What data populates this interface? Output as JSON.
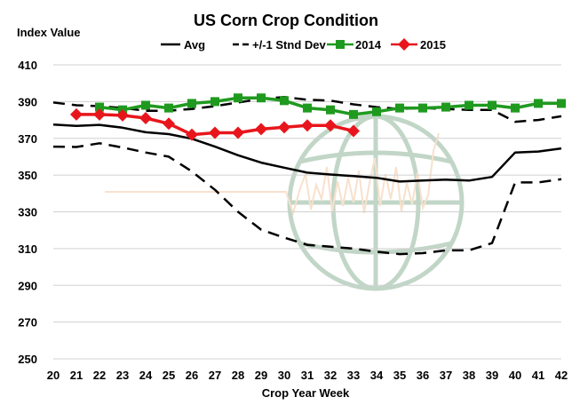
{
  "chart_data": {
    "type": "line",
    "title": "US Corn Crop Condition",
    "ylabel": "Index Value",
    "xlabel": "Crop Year Week",
    "x": [
      20,
      21,
      22,
      23,
      24,
      25,
      26,
      27,
      28,
      29,
      30,
      31,
      32,
      33,
      34,
      35,
      36,
      37,
      38,
      39,
      40,
      41,
      42
    ],
    "xlim": [
      20,
      42
    ],
    "ylim": [
      250,
      410
    ],
    "yticks": [
      250,
      270,
      290,
      310,
      330,
      350,
      370,
      390,
      410
    ],
    "grid": true,
    "legend_position": "top",
    "series": [
      {
        "name": "Avg",
        "style": "solid",
        "color": "#000000",
        "x": [
          20,
          21,
          22,
          23,
          24,
          25,
          26,
          27,
          28,
          29,
          30,
          31,
          32,
          33,
          34,
          35,
          36,
          37,
          38,
          39,
          40,
          41,
          42
        ],
        "values": [
          377.5,
          376.8,
          377.3,
          375.8,
          373.3,
          372.3,
          369.8,
          365.5,
          360.8,
          356.8,
          354.0,
          351.3,
          350.3,
          349.5,
          348.5,
          346.5,
          347.0,
          347.5,
          347.0,
          349.0,
          362.3,
          362.8,
          364.5
        ]
      },
      {
        "name": "+/-1 Stnd Dev",
        "style": "dashed",
        "color": "#000000",
        "x": [
          20,
          21,
          22,
          23,
          24,
          25,
          26,
          27,
          28,
          29,
          30,
          31,
          32,
          33,
          34,
          35,
          36,
          37,
          38,
          39,
          40,
          41,
          42
        ],
        "values": [
          389.5,
          388.0,
          387.5,
          386.5,
          385.0,
          385.0,
          386.0,
          387.5,
          389.5,
          391.5,
          392.5,
          391.0,
          390.5,
          388.5,
          387.0,
          386.0,
          386.5,
          386.0,
          385.5,
          385.5,
          379.0,
          380.0,
          382.0
        ]
      },
      {
        "name": "",
        "style": "dashed",
        "color": "#000000",
        "x": [
          20,
          21,
          22,
          23,
          24,
          25,
          26,
          27,
          28,
          29,
          30,
          31,
          32,
          33,
          34,
          35,
          36,
          37,
          38,
          39,
          40,
          41,
          42
        ],
        "values": [
          365.5,
          365.3,
          367.3,
          365.0,
          362.3,
          360.0,
          352.0,
          342.0,
          330.0,
          320.3,
          316.0,
          312.0,
          311.0,
          310.0,
          308.3,
          307.0,
          307.5,
          309.0,
          309.0,
          313.0,
          346.0,
          346.0,
          347.8
        ]
      },
      {
        "name": "2014",
        "style": "solid-square-markers",
        "color": "#1f9a1f",
        "x": [
          22,
          23,
          24,
          25,
          26,
          27,
          28,
          29,
          30,
          31,
          32,
          33,
          34,
          35,
          36,
          37,
          38,
          39,
          40,
          41,
          42
        ],
        "values": [
          387.0,
          385.5,
          388.0,
          386.5,
          389.0,
          390.0,
          392.0,
          392.0,
          390.5,
          386.5,
          385.5,
          383.0,
          384.5,
          386.5,
          386.5,
          387.0,
          388.0,
          388.0,
          386.5,
          389.0,
          389.0
        ]
      },
      {
        "name": "2015",
        "style": "solid-diamond-markers",
        "color": "#e8161c",
        "x": [
          21,
          22,
          23,
          24,
          25,
          26,
          27,
          28,
          29,
          30,
          31,
          32,
          33
        ],
        "values": [
          383.0,
          383.0,
          382.5,
          381.0,
          378.0,
          372.0,
          373.0,
          373.0,
          375.0,
          376.0,
          377.0,
          377.0,
          374.0
        ]
      }
    ]
  }
}
